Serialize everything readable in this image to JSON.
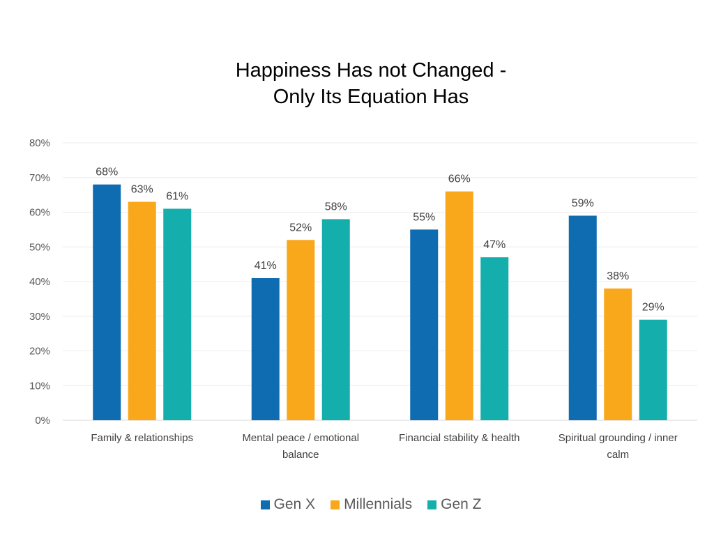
{
  "chart_data": {
    "type": "bar",
    "title": [
      "Happiness Has not Changed -",
      "Only Its Equation Has"
    ],
    "categories": [
      [
        "Family & relationships"
      ],
      [
        "Mental peace / emotional",
        "balance"
      ],
      [
        "Financial stability & health"
      ],
      [
        "Spiritual grounding / inner",
        "calm"
      ]
    ],
    "series": [
      {
        "name": "Gen X",
        "color": "#0F6CB0",
        "values": [
          68,
          41,
          55,
          59
        ]
      },
      {
        "name": "Millennials",
        "color": "#F9A81C",
        "values": [
          63,
          52,
          66,
          38
        ]
      },
      {
        "name": "Gen Z",
        "color": "#14AFAC",
        "values": [
          61,
          58,
          47,
          29
        ]
      }
    ],
    "data_label_suffix": "%",
    "ylim": [
      0,
      80
    ],
    "yticks": [
      0,
      10,
      20,
      30,
      40,
      50,
      60,
      70,
      80
    ],
    "ytick_labels": [
      "0%",
      "10%",
      "20%",
      "30%",
      "40%",
      "50%",
      "60%",
      "70%",
      "80%"
    ],
    "grid": true,
    "legend_position": "bottom"
  }
}
